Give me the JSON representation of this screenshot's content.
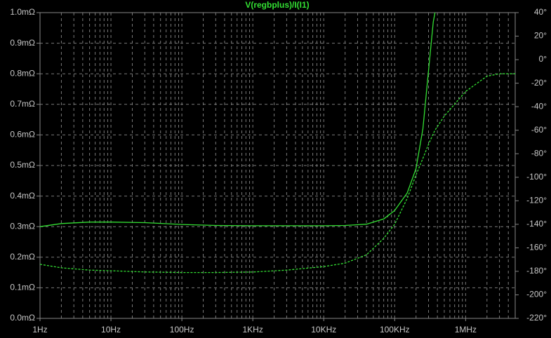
{
  "chart_data": {
    "type": "line",
    "title": "V(regbplus)/I(I1)",
    "log_x": true,
    "grid": true,
    "x": [
      1,
      2,
      5,
      10,
      30,
      100,
      300,
      1000,
      3000,
      10000,
      20000,
      40000,
      70000,
      100000,
      150000,
      200000,
      250000,
      300000,
      350000,
      370000
    ],
    "series": [
      {
        "color": "#33e033",
        "dash": false,
        "values": [
          0.3,
          0.31,
          0.315,
          0.315,
          0.313,
          0.307,
          0.304,
          0.303,
          0.303,
          0.303,
          0.304,
          0.308,
          0.325,
          0.353,
          0.41,
          0.49,
          0.62,
          0.81,
          0.97,
          1.0
        ]
      },
      {
        "color": "#33e033",
        "dash": true,
        "axis": "y2",
        "values": [
          -174,
          -177,
          -179,
          -179.5,
          -180.5,
          -181,
          -181,
          -180.6,
          -179,
          -176,
          -173,
          -166,
          -152,
          -140,
          -118,
          -98,
          -84,
          -72,
          -63,
          -60
        ]
      }
    ],
    "phase_tail": {
      "x": [
        500000,
        1000000,
        2000000,
        3000000,
        5000000
      ],
      "values": [
        -48,
        -27,
        -14,
        -12,
        -12
      ]
    },
    "xlim": [
      1,
      5000000
    ],
    "xticks": [
      {
        "value": 1,
        "label": "1Hz"
      },
      {
        "value": 10,
        "label": "10Hz"
      },
      {
        "value": 100,
        "label": "100Hz"
      },
      {
        "value": 1000,
        "label": "1KHz"
      },
      {
        "value": 10000,
        "label": "10KHz"
      },
      {
        "value": 100000,
        "label": "100KHz"
      },
      {
        "value": 1000000,
        "label": "1MHz"
      }
    ],
    "ylim": [
      0,
      1.0
    ],
    "yticks": [
      {
        "value": 0,
        "label": "0.0mΩ"
      },
      {
        "value": 0.1,
        "label": "0.1mΩ"
      },
      {
        "value": 0.2,
        "label": "0.2mΩ"
      },
      {
        "value": 0.3,
        "label": "0.3mΩ"
      },
      {
        "value": 0.4,
        "label": "0.4mΩ"
      },
      {
        "value": 0.5,
        "label": "0.5mΩ"
      },
      {
        "value": 0.6,
        "label": "0.6mΩ"
      },
      {
        "value": 0.7,
        "label": "0.7mΩ"
      },
      {
        "value": 0.8,
        "label": "0.8mΩ"
      },
      {
        "value": 0.9,
        "label": "0.9mΩ"
      },
      {
        "value": 1.0,
        "label": "1.0mΩ"
      }
    ],
    "y2lim": [
      -220,
      40
    ],
    "y2ticks": [
      {
        "value": 40,
        "label": "40°"
      },
      {
        "value": 20,
        "label": "20°"
      },
      {
        "value": 0,
        "label": "0°"
      },
      {
        "value": -20,
        "label": "-20°"
      },
      {
        "value": -40,
        "label": "-40°"
      },
      {
        "value": -60,
        "label": "-60°"
      },
      {
        "value": -80,
        "label": "-80°"
      },
      {
        "value": -100,
        "label": "-100°"
      },
      {
        "value": -120,
        "label": "-120°"
      },
      {
        "value": -140,
        "label": "-140°"
      },
      {
        "value": -160,
        "label": "-160°"
      },
      {
        "value": -180,
        "label": "-180°"
      },
      {
        "value": -200,
        "label": "-200°"
      },
      {
        "value": -220,
        "label": "-220°"
      }
    ]
  }
}
